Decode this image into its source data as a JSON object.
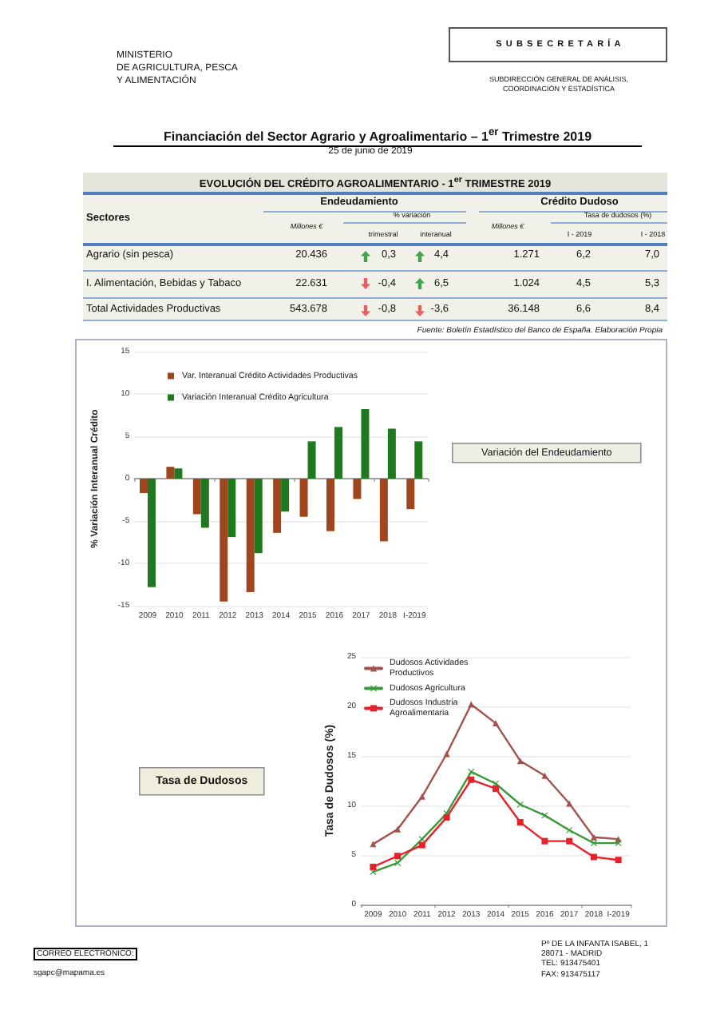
{
  "chart_data": [
    {
      "type": "other",
      "title": "Financiación del Sector Agrario y Agroalimentario – 1$^{er}$ Trimestre 2019",
      "subtitle": "25 de junio de 2019",
      "annotations": [
        "MINISTERIO",
        "DE AGRICULTURA, PESCA",
        "Y ALIMENTACIÓN",
        "SUBSECRETARÍA",
        "SUBDIRECCIÓN GENERAL DE ANÁLISIS,",
        "COORDINACIÓN Y ESTADÍSTICA"
      ]
    },
    {
      "type": "other",
      "title": "EVOLUCIÓN DEL CRÉDITO AGROALIMENTARIO - 1$^{er}$ TRIMESTRE 2019",
      "categories": [
        "Agrario (sin pesca)",
        "I. Alimentación, Bebidas y Tabaco",
        "Total Actividades Productivas"
      ],
      "series": [
        {
          "name": "Millones €",
          "values": [
            20436,
            22631,
            543678
          ],
          "value_labels": [
            "20.436",
            "22.631",
            "543.678"
          ]
        },
        {
          "name": "trimestral",
          "values": [
            0.3,
            -0.4,
            -0.8
          ],
          "value_labels": [
            "0,3",
            "-0,4",
            "-0,8"
          ],
          "marker": "triangle",
          "colors": [
            "#3fa34d",
            "#e2625e",
            "#e2625e"
          ]
        },
        {
          "name": "interanual",
          "values": [
            4.4,
            6.5,
            -3.6
          ],
          "value_labels": [
            "4,4",
            "6,5",
            "-3,6"
          ],
          "marker": "triangle",
          "colors": [
            "#3fa34d",
            "#3fa34d",
            "#e2625e"
          ]
        },
        {
          "name": "Millones €",
          "values": [
            1271,
            1024,
            36148
          ],
          "value_labels": [
            "1.271",
            "1.024",
            "36.148"
          ]
        },
        {
          "name": "I - 2019",
          "values": [
            6.2,
            4.5,
            6.6
          ],
          "value_labels": [
            "6,2",
            "4,5",
            "6,6"
          ]
        },
        {
          "name": "I - 2018",
          "values": [
            7.0,
            5.3,
            8.4
          ],
          "value_labels": [
            "7,0",
            "5,3",
            "8,4"
          ]
        }
      ],
      "annotations": [
        "Sectores",
        "Endeudamiento",
        "% variación",
        "Crédito Dudoso",
        "Tasa de dudosos (%)",
        "Fuente: Boletín Estadístico del Banco de España. Elaboración Propia"
      ]
    },
    {
      "type": "bar",
      "categories": [
        "2009",
        "2010",
        "2011",
        "2012",
        "2013",
        "2014",
        "2015",
        "2016",
        "2017",
        "2018",
        "I-2019"
      ],
      "series": [
        {
          "name": "Var. Interanual Crédito Actividades Productivas",
          "color": "#a0461e",
          "values": [
            -1.7,
            1.4,
            -4.2,
            -14.5,
            -13.4,
            -6.4,
            -4.5,
            -6.2,
            -2.4,
            -7.4,
            -3.6
          ]
        },
        {
          "name": "Variación Interanual Crédito Agricultura",
          "color": "#1f7a1f",
          "values": [
            -12.8,
            1.2,
            -5.8,
            -6.9,
            -8.8,
            -3.9,
            4.4,
            6.1,
            8.2,
            5.9,
            4.4
          ]
        }
      ],
      "ylabel": "% Variación Interanual Crédito",
      "ylim": [
        -15,
        15
      ],
      "yticks": [
        -15,
        -10,
        -5,
        0,
        5,
        10,
        15
      ],
      "grid": "y",
      "legend": "top left",
      "annotations": [
        "Variación del Endeudamiento"
      ]
    },
    {
      "type": "line",
      "categories": [
        "2009",
        "2010",
        "2011",
        "2012",
        "2013",
        "2014",
        "2015",
        "2016",
        "2017",
        "2018",
        "I-2019"
      ],
      "series": [
        {
          "name": "Dudosos Actividades Productivos",
          "color": "#a3524e",
          "marker": "triangle",
          "values": [
            6.1,
            7.6,
            10.9,
            15.2,
            20.2,
            18.3,
            14.5,
            13.0,
            10.2,
            6.8,
            6.6
          ]
        },
        {
          "name": "Dudosos Agricultura",
          "color": "#3a9a3a",
          "marker": "cross",
          "values": [
            3.3,
            4.2,
            6.6,
            9.2,
            13.4,
            12.2,
            10.1,
            9.0,
            7.5,
            6.2,
            6.2
          ]
        },
        {
          "name": "Dudosos Industria Agroalimentaria",
          "color": "#e8202a",
          "marker": "square",
          "values": [
            3.8,
            4.9,
            6.0,
            8.8,
            12.6,
            11.7,
            8.3,
            6.4,
            6.4,
            4.8,
            4.5
          ]
        }
      ],
      "ylabel": "Tasa de Dudosos (%)",
      "ylim": [
        0,
        25
      ],
      "yticks": [
        0,
        5,
        10,
        15,
        20,
        25
      ],
      "grid": "y",
      "legend": "top left",
      "line_style": "solid",
      "annotations": [
        "Tasa de Dudosos"
      ]
    },
    {
      "type": "other",
      "annotations": [
        "CORREO ELECTRÓNICO:",
        "sgapc@mapama.es",
        "Pº DE LA INFANTA ISABEL, 1",
        "28071 - MADRID",
        "TEL: 913475401",
        "FAX: 913475117"
      ]
    }
  ]
}
